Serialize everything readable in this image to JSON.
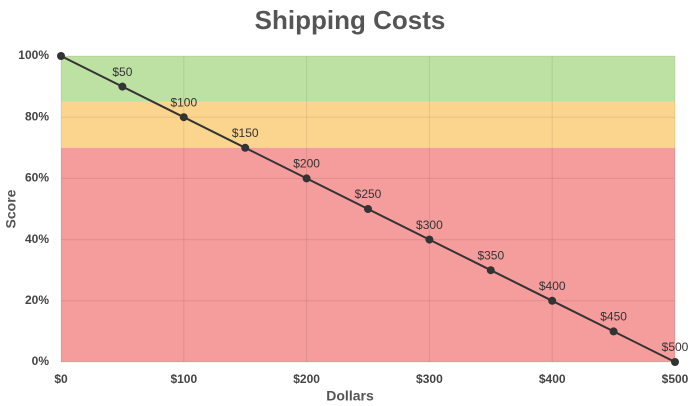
{
  "chart_data": {
    "type": "line",
    "title": "Shipping Costs",
    "x_label": "Dollars",
    "y_label": "Score",
    "x": [
      0,
      50,
      100,
      150,
      200,
      250,
      300,
      350,
      400,
      450,
      500
    ],
    "series": [
      {
        "color": "#333333",
        "values": [
          100,
          90,
          80,
          70,
          60,
          50,
          40,
          30,
          20,
          10,
          0
        ],
        "point_labels": [
          null,
          "$50",
          "$100",
          "$150",
          "$200",
          "$250",
          "$300",
          "$350",
          "$400",
          "$450",
          "$500"
        ]
      }
    ],
    "xlim": [
      0,
      500
    ],
    "ylim": [
      0,
      100
    ],
    "xticks": [
      {
        "value": 0,
        "label": "$0"
      },
      {
        "value": 100,
        "label": "$100"
      },
      {
        "value": 200,
        "label": "$200"
      },
      {
        "value": 300,
        "label": "$300"
      },
      {
        "value": 400,
        "label": "$400"
      },
      {
        "value": 500,
        "label": "$500"
      }
    ],
    "yticks": [
      {
        "value": 0,
        "label": "0%"
      },
      {
        "value": 20,
        "label": "20%"
      },
      {
        "value": 40,
        "label": "40%"
      },
      {
        "value": 60,
        "label": "60%"
      },
      {
        "value": 80,
        "label": "80%"
      },
      {
        "value": 100,
        "label": "100%"
      }
    ],
    "bands": [
      {
        "from": 85,
        "to": 100,
        "color": "#bde0a3"
      },
      {
        "from": 70,
        "to": 85,
        "color": "#fbd48e"
      },
      {
        "from": 0,
        "to": 70,
        "color": "#f59c9c"
      }
    ],
    "grid": true
  }
}
